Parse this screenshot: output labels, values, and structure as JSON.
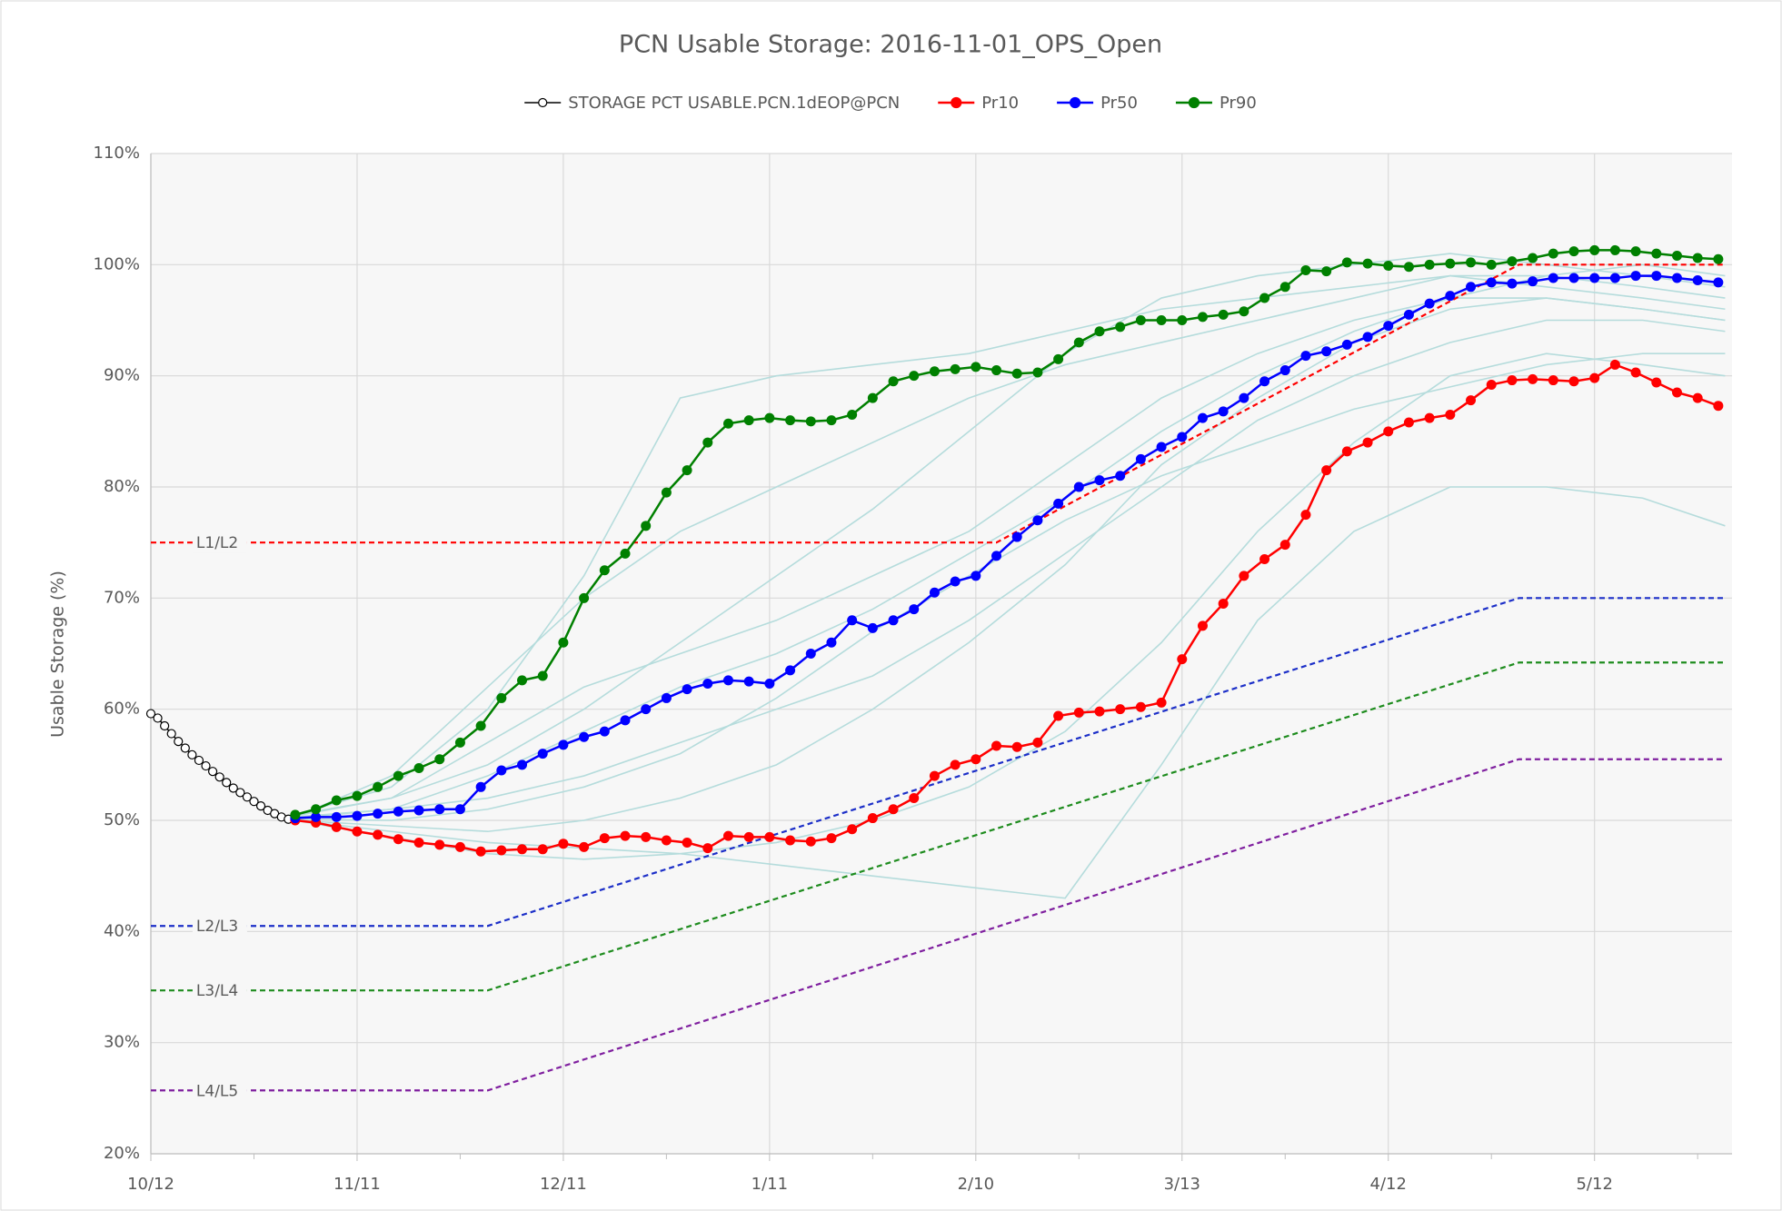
{
  "chart_data": {
    "type": "line",
    "title": "PCN Usable Storage: 2016-11-01_OPS_Open",
    "ylabel": "Usable Storage (%)",
    "xlim": [
      0,
      230
    ],
    "xticks": [
      {
        "value": 0,
        "label": "10/12"
      },
      {
        "value": 30,
        "label": "11/11"
      },
      {
        "value": 60,
        "label": "12/11"
      },
      {
        "value": 90,
        "label": "1/11"
      },
      {
        "value": 120,
        "label": "2/10"
      },
      {
        "value": 150,
        "label": "3/13"
      },
      {
        "value": 180,
        "label": "4/12"
      },
      {
        "value": 210,
        "label": "5/12"
      }
    ],
    "xminor": [
      15,
      45,
      75,
      105,
      135,
      165,
      195,
      225
    ],
    "ylim": [
      20,
      110
    ],
    "yticks": [
      {
        "value": 20,
        "label": "20%"
      },
      {
        "value": 30,
        "label": "30%"
      },
      {
        "value": 40,
        "label": "40%"
      },
      {
        "value": 50,
        "label": "50%"
      },
      {
        "value": 60,
        "label": "60%"
      },
      {
        "value": 70,
        "label": "70%"
      },
      {
        "value": 80,
        "label": "80%"
      },
      {
        "value": 90,
        "label": "90%"
      },
      {
        "value": 100,
        "label": "100%"
      },
      {
        "value": 110,
        "label": "110%"
      }
    ],
    "grid": true,
    "legend": "top",
    "observed": {
      "name": "STORAGE PCT USABLE.PCN.1dEOP@PCN",
      "color": "#000000",
      "x": [
        0,
        1,
        2,
        3,
        4,
        5,
        6,
        7,
        8,
        9,
        10,
        11,
        12,
        13,
        14,
        15,
        16,
        17,
        18,
        19,
        20,
        21
      ],
      "values": [
        59.6,
        59.2,
        58.5,
        57.8,
        57.1,
        56.5,
        55.9,
        55.4,
        54.9,
        54.4,
        53.9,
        53.4,
        52.9,
        52.5,
        52.1,
        51.7,
        51.3,
        50.9,
        50.6,
        50.3,
        50.1,
        50
      ]
    },
    "x": [
      21,
      24,
      27,
      30,
      33,
      36,
      39,
      42,
      45,
      48,
      51,
      54,
      57,
      60,
      63,
      66,
      69,
      72,
      75,
      78,
      81,
      84,
      87,
      90,
      93,
      96,
      99,
      102,
      105,
      108,
      111,
      114,
      117,
      120,
      123,
      126,
      129,
      132,
      135,
      138,
      141,
      144,
      147,
      150,
      153,
      156,
      159,
      162,
      165,
      168,
      171,
      174,
      177,
      180,
      183,
      186,
      189,
      192,
      195,
      198,
      201,
      204,
      207,
      210,
      213,
      216,
      219,
      222,
      225,
      228
    ],
    "series": [
      {
        "name": "Pr10",
        "color": "#ff0000",
        "values": [
          50,
          49.8,
          49.4,
          49,
          48.7,
          48.3,
          48,
          47.8,
          47.6,
          47.2,
          47.3,
          47.4,
          47.4,
          47.9,
          47.6,
          48.4,
          48.6,
          48.5,
          48.2,
          48,
          47.5,
          48.6,
          48.5,
          48.5,
          48.2,
          48.1,
          48.4,
          49.2,
          50.2,
          51,
          52,
          54,
          55,
          55.5,
          56.7,
          56.6,
          57,
          59.4,
          59.7,
          59.8,
          60,
          60.2,
          60.6,
          64.5,
          67.5,
          69.5,
          72,
          73.5,
          74.8,
          77.5,
          81.5,
          83.2,
          84,
          85,
          85.8,
          86.2,
          86.5,
          87.8,
          89.2,
          89.6,
          89.7,
          89.6,
          89.5,
          89.8,
          91,
          90.3,
          89.4,
          88.5,
          88,
          87.3
        ]
      },
      {
        "name": "Pr50",
        "color": "#0000ff",
        "values": [
          50.2,
          50.3,
          50.3,
          50.4,
          50.6,
          50.8,
          50.9,
          51,
          51,
          53,
          54.5,
          55,
          56,
          56.8,
          57.5,
          58,
          59,
          60,
          61,
          61.8,
          62.3,
          62.6,
          62.5,
          62.3,
          63.5,
          65,
          66,
          68,
          67.3,
          68,
          69,
          70.5,
          71.5,
          72,
          73.8,
          75.5,
          77,
          78.5,
          80,
          80.6,
          81,
          82.5,
          83.6,
          84.5,
          86.2,
          86.8,
          88,
          89.5,
          90.5,
          91.8,
          92.2,
          92.8,
          93.5,
          94.5,
          95.5,
          96.5,
          97.2,
          98,
          98.4,
          98.3,
          98.5,
          98.8,
          98.8,
          98.8,
          98.8,
          99,
          99,
          98.8,
          98.6,
          98.4
        ]
      },
      {
        "name": "Pr90",
        "color": "#008000",
        "values": [
          50.5,
          51,
          51.8,
          52.2,
          53,
          54,
          54.7,
          55.5,
          57,
          58.5,
          61,
          62.6,
          63,
          66,
          70,
          72.5,
          74,
          76.5,
          79.5,
          81.5,
          84,
          85.7,
          86,
          86.2,
          86,
          85.9,
          86,
          86.5,
          88,
          89.5,
          90,
          90.4,
          90.6,
          90.8,
          90.5,
          90.2,
          90.3,
          91.5,
          93,
          94,
          94.4,
          95,
          95,
          95,
          95.3,
          95.5,
          95.8,
          97,
          98,
          99.5,
          99.4,
          100.2,
          100.1,
          99.9,
          99.8,
          100,
          100.1,
          100.2,
          100,
          100.3,
          100.6,
          101,
          101.2,
          101.3,
          101.3,
          101.2,
          101,
          100.8,
          100.6,
          100.5
        ]
      }
    ],
    "trace_x": [
      21,
      35,
      49,
      63,
      77,
      91,
      105,
      119,
      133,
      147,
      161,
      175,
      189,
      203,
      217,
      229
    ],
    "trace_color": "#b5dcdc",
    "traces": [
      {
        "values": [
          50.5,
          53,
          60,
          72,
          88,
          90,
          91,
          92,
          94,
          96,
          97,
          98,
          99,
          98,
          97,
          96
        ]
      },
      {
        "values": [
          50.5,
          52,
          55,
          60,
          66,
          72,
          78,
          85,
          92,
          97,
          99,
          100,
          101,
          100,
          99,
          98
        ]
      },
      {
        "values": [
          50.2,
          51,
          52,
          54,
          57,
          60,
          63,
          68,
          74,
          80,
          86,
          90,
          93,
          95,
          95,
          94
        ]
      },
      {
        "values": [
          50,
          49.5,
          49,
          50,
          52,
          55,
          60,
          66,
          73,
          82,
          88,
          93,
          96,
          97,
          96,
          95
        ]
      },
      {
        "values": [
          50,
          48.5,
          47,
          46.5,
          47,
          48,
          50,
          53,
          58,
          66,
          76,
          84,
          90,
          92,
          91,
          90
        ]
      },
      {
        "values": [
          50.3,
          54,
          62,
          70,
          76,
          80,
          84,
          88,
          91,
          93,
          95,
          97,
          99,
          99,
          98,
          97
        ]
      },
      {
        "values": [
          50,
          49,
          48,
          47.5,
          47,
          46,
          45,
          44,
          43,
          55,
          68,
          76,
          80,
          80,
          79,
          76.5
        ]
      },
      {
        "values": [
          50.4,
          52,
          57,
          62,
          65,
          68,
          72,
          76,
          82,
          88,
          92,
          95,
          97,
          97,
          96,
          95
        ]
      },
      {
        "values": [
          50.1,
          50,
          51,
          53,
          56,
          61,
          67,
          72,
          77,
          81,
          84,
          87,
          89,
          91,
          92,
          92
        ]
      },
      {
        "values": [
          50.3,
          51,
          54,
          58,
          62,
          65,
          69,
          74,
          79,
          85,
          90,
          94,
          97,
          99,
          100,
          99
        ]
      }
    ],
    "thresholds": [
      {
        "name": "L1/L2",
        "color": "#ff0000",
        "x": [
          0,
          123,
          199,
          229
        ],
        "values": [
          75,
          75,
          100,
          100
        ]
      },
      {
        "name": "L2/L3",
        "color": "#1c2fc8",
        "x": [
          0,
          49,
          199,
          229
        ],
        "values": [
          40.5,
          40.5,
          70,
          70
        ]
      },
      {
        "name": "L3/L4",
        "color": "#1e8c1e",
        "x": [
          0,
          49,
          199,
          229
        ],
        "values": [
          34.7,
          34.7,
          64.2,
          64.2
        ]
      },
      {
        "name": "L4/L5",
        "color": "#7f1f9f",
        "x": [
          0,
          49,
          199,
          229
        ],
        "values": [
          25.7,
          25.7,
          55.5,
          55.5
        ]
      }
    ],
    "threshold_label_x": 6.6
  }
}
